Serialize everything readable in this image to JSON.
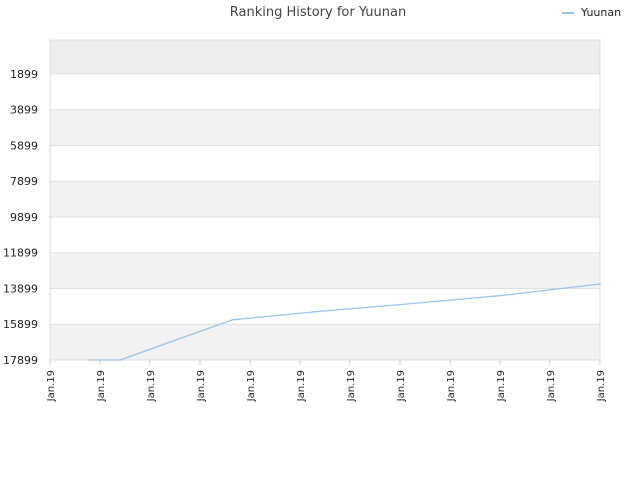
{
  "chart_data": {
    "type": "line",
    "title": "Ranking History for Yuunan",
    "xlabel": "",
    "ylabel": "",
    "y_inverted": true,
    "ylim": [
      17899,
      0
    ],
    "yticks": [
      1899,
      3899,
      5899,
      7899,
      9899,
      11899,
      13899,
      15899,
      17899
    ],
    "xticks": [
      "Jan.19",
      "Jan.19",
      "Jan.19",
      "Jan.19",
      "Jan.19",
      "Jan.19",
      "Jan.19",
      "Jan.19",
      "Jan.19",
      "Jan.19",
      "Jan.19",
      "Jan.19"
    ],
    "legend_position": "top-right",
    "grid": true,
    "line_color": "#95c6f1",
    "series": [
      {
        "name": "Yuunan",
        "points": [
          {
            "x": 0.8,
            "y": 17899
          },
          {
            "x": 1.4,
            "y": 17899
          },
          {
            "x": 3.65,
            "y": 15650
          },
          {
            "x": 5.3,
            "y": 15200
          },
          {
            "x": 7.0,
            "y": 14800
          },
          {
            "x": 9.0,
            "y": 14300
          },
          {
            "x": 11.0,
            "y": 13650
          }
        ]
      }
    ]
  }
}
